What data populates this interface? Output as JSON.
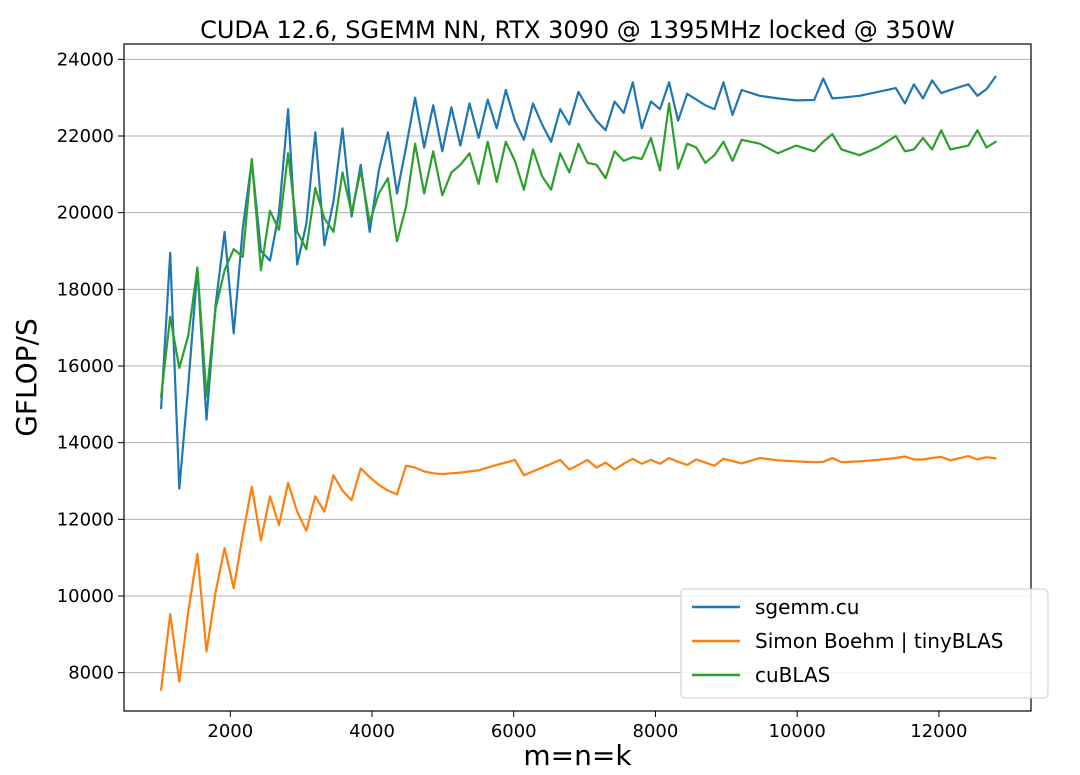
{
  "chart_data": {
    "type": "line",
    "title": "CUDA 12.6, SGEMM NN, RTX 3090 @ 1395MHz locked @ 350W",
    "xlabel": "m=n=k",
    "ylabel": "GFLOP/S",
    "xlim": [
      500,
      13300
    ],
    "ylim": [
      7000,
      24400
    ],
    "xticks": [
      2000,
      4000,
      6000,
      8000,
      10000,
      12000
    ],
    "yticks": [
      8000,
      10000,
      12000,
      14000,
      16000,
      18000,
      20000,
      22000,
      24000
    ],
    "grid": "horizontal",
    "legend_position": "lower-right",
    "x": [
      1024,
      1152,
      1280,
      1408,
      1536,
      1664,
      1792,
      1920,
      2048,
      2176,
      2304,
      2432,
      2560,
      2688,
      2816,
      2944,
      3072,
      3200,
      3328,
      3456,
      3584,
      3712,
      3840,
      3968,
      4096,
      4224,
      4352,
      4480,
      4608,
      4736,
      4864,
      4992,
      5120,
      5248,
      5376,
      5504,
      5632,
      5760,
      5888,
      6016,
      6144,
      6272,
      6400,
      6528,
      6656,
      6784,
      6912,
      7040,
      7168,
      7296,
      7424,
      7552,
      7680,
      7808,
      7936,
      8064,
      8192,
      8320,
      8448,
      8576,
      8704,
      8832,
      8960,
      9088,
      9216,
      9472,
      9728,
      9984,
      10240,
      10368,
      10496,
      10624,
      10880,
      11136,
      11392,
      11520,
      11648,
      11776,
      11904,
      12032,
      12160,
      12416,
      12544,
      12672,
      12800
    ],
    "series": [
      {
        "name": "sgemm.cu",
        "color": "#1f77b4",
        "values": [
          14900,
          18950,
          12800,
          15500,
          18550,
          14600,
          17600,
          19500,
          16850,
          19600,
          21350,
          19000,
          18750,
          20000,
          22700,
          18650,
          19700,
          22100,
          19150,
          20300,
          22200,
          19900,
          21250,
          19500,
          21100,
          22100,
          20500,
          21700,
          23000,
          21700,
          22800,
          21600,
          22750,
          21750,
          22850,
          21950,
          22950,
          22200,
          23200,
          22400,
          21900,
          22850,
          22300,
          21850,
          22700,
          22300,
          23150,
          22750,
          22400,
          22150,
          22900,
          22600,
          23400,
          22200,
          22900,
          22700,
          23400,
          22400,
          23100,
          22950,
          22800,
          22700,
          23400,
          22550,
          23200,
          23050,
          22980,
          22930,
          22940,
          23500,
          22980,
          23000,
          23050,
          23150,
          23250,
          22850,
          23350,
          22980,
          23450,
          23120,
          23200,
          23350,
          23050,
          23220,
          23550
        ]
      },
      {
        "name": "Simon Boehm | tinyBLAS",
        "color": "#ff7f0e",
        "values": [
          7550,
          9530,
          7770,
          9600,
          11100,
          8550,
          10100,
          11250,
          10200,
          11600,
          12850,
          11450,
          12600,
          11850,
          12950,
          12200,
          11700,
          12600,
          12200,
          13150,
          12750,
          12500,
          13330,
          13100,
          12900,
          12750,
          12650,
          13400,
          13350,
          13250,
          13200,
          13180,
          13200,
          13220,
          13250,
          13280,
          13350,
          13420,
          13480,
          13550,
          13150,
          13250,
          13350,
          13450,
          13550,
          13300,
          13420,
          13550,
          13350,
          13480,
          13300,
          13450,
          13580,
          13450,
          13550,
          13450,
          13600,
          13500,
          13420,
          13560,
          13480,
          13400,
          13580,
          13520,
          13460,
          13600,
          13540,
          13510,
          13490,
          13500,
          13600,
          13490,
          13510,
          13550,
          13600,
          13640,
          13560,
          13560,
          13600,
          13630,
          13540,
          13650,
          13560,
          13620,
          13590
        ]
      },
      {
        "name": "cuBLAS",
        "color": "#2ca02c",
        "values": [
          15200,
          17280,
          15950,
          16800,
          18570,
          15200,
          17500,
          18500,
          19050,
          18850,
          21400,
          18500,
          20050,
          19550,
          21550,
          19500,
          19050,
          20650,
          19850,
          19500,
          21050,
          20000,
          21100,
          19750,
          20500,
          20900,
          19250,
          20150,
          21800,
          20500,
          21600,
          20450,
          21050,
          21250,
          21550,
          20750,
          21850,
          20800,
          21850,
          21350,
          20600,
          21650,
          20950,
          20600,
          21550,
          21050,
          21800,
          21300,
          21250,
          20900,
          21600,
          21350,
          21450,
          21400,
          21950,
          21100,
          22850,
          21150,
          21800,
          21700,
          21300,
          21500,
          21850,
          21350,
          21900,
          21800,
          21550,
          21750,
          21600,
          21850,
          22050,
          21650,
          21500,
          21700,
          22000,
          21600,
          21650,
          21950,
          21650,
          22150,
          21650,
          21750,
          22150,
          21700,
          21850
        ]
      }
    ]
  }
}
